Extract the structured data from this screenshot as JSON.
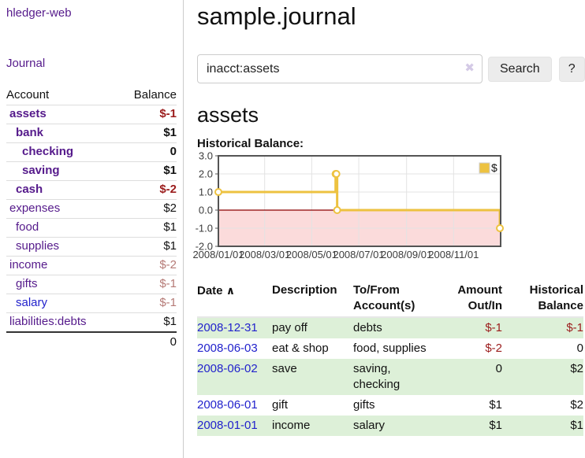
{
  "brand": "hledger-web",
  "nav": {
    "journal_label": "Journal"
  },
  "colors": {
    "link_purple": "#551a8b",
    "link_blue": "#2222cc",
    "negative_strong": "#9b1c1c",
    "negative_soft": "#b57a76",
    "row_stripe_green": "#ddf0d8",
    "chart_line_gold": "#edc240",
    "chart_zero_line": "#8b0000",
    "chart_negative_region": "#fbdbdb"
  },
  "sidebar_table": {
    "headers": {
      "account": "Account",
      "balance": "Balance"
    },
    "rows": [
      {
        "account": "assets",
        "balance": "$-1",
        "level": 1,
        "bold": true,
        "neg": "strong"
      },
      {
        "account": "bank",
        "balance": "$1",
        "level": 2,
        "bold": true,
        "neg": ""
      },
      {
        "account": "checking",
        "balance": "0",
        "level": 3,
        "bold": true,
        "neg": ""
      },
      {
        "account": "saving",
        "balance": "$1",
        "level": 3,
        "bold": true,
        "neg": ""
      },
      {
        "account": "cash",
        "balance": "$-2",
        "level": 2,
        "bold": true,
        "neg": "strong"
      },
      {
        "account": "expenses",
        "balance": "$2",
        "level": 1,
        "bold": false,
        "neg": ""
      },
      {
        "account": "food",
        "balance": "$1",
        "level": 2,
        "bold": false,
        "neg": ""
      },
      {
        "account": "supplies",
        "balance": "$1",
        "level": 2,
        "bold": false,
        "neg": ""
      },
      {
        "account": "income",
        "balance": "$-2",
        "level": 1,
        "bold": false,
        "neg": "soft"
      },
      {
        "account": "gifts",
        "balance": "$-1",
        "level": 2,
        "bold": false,
        "neg": "soft"
      },
      {
        "account": "salary",
        "balance": "$-1",
        "level": 2,
        "bold": false,
        "neg": "soft",
        "link_color": "blue"
      },
      {
        "account": "liabilities:debts",
        "balance": "$1",
        "level": 1,
        "bold": false,
        "neg": ""
      }
    ],
    "total": "0"
  },
  "header": {
    "title": "sample.journal"
  },
  "search": {
    "value": "inacct:assets",
    "clear_icon": "✖",
    "button_label": "Search",
    "help_label": "?"
  },
  "account_page": {
    "heading": "assets",
    "chart_label": "Historical Balance:"
  },
  "chart_data": {
    "type": "line",
    "title": "Historical Balance",
    "step": true,
    "series": [
      {
        "name": "$",
        "color": "#edc240",
        "points": [
          [
            "2008-01-01",
            1
          ],
          [
            "2008-06-01",
            2
          ],
          [
            "2008-06-02",
            2
          ],
          [
            "2008-06-03",
            0
          ],
          [
            "2008-12-31",
            -1
          ]
        ]
      }
    ],
    "xdomain": [
      "2008-01-01",
      "2009-01-01"
    ],
    "xticks": [
      {
        "label": "2008/01/01",
        "date": "2008-01-01"
      },
      {
        "label": "2008/03/01",
        "date": "2008-03-01"
      },
      {
        "label": "2008/05/01",
        "date": "2008-05-01"
      },
      {
        "label": "2008/07/01",
        "date": "2008-07-01"
      },
      {
        "label": "2008/09/01",
        "date": "2008-09-01"
      },
      {
        "label": "2008/11/01",
        "date": "2008-11-01"
      }
    ],
    "yticks": [
      3.0,
      2.0,
      1.0,
      0.0,
      -1.0,
      -2.0
    ],
    "ylim": [
      -2,
      3
    ],
    "grid": true,
    "legend": {
      "position": "top-right",
      "label": "$"
    },
    "negative_region_color": "#fbdbdb",
    "zero_line_color": "#8b0000",
    "border_color": "#545454",
    "grid_color": "#e3e3e3"
  },
  "register_table": {
    "headers": {
      "date": "Date",
      "sort_icon": "∧",
      "description": "Description",
      "accounts": "To/From Account(s)",
      "amount": "Amount Out/In",
      "balance": "Historical Balance"
    },
    "rows": [
      {
        "date": "2008-12-31",
        "description": "pay off",
        "accounts": "debts",
        "amount": "$-1",
        "balance": "$-1"
      },
      {
        "date": "2008-06-03",
        "description": "eat & shop",
        "accounts": "food, supplies",
        "amount": "$-2",
        "balance": "0"
      },
      {
        "date": "2008-06-02",
        "description": "save",
        "accounts": "saving, checking",
        "amount": "0",
        "balance": "$2"
      },
      {
        "date": "2008-06-01",
        "description": "gift",
        "accounts": "gifts",
        "amount": "$1",
        "balance": "$2"
      },
      {
        "date": "2008-01-01",
        "description": "income",
        "accounts": "salary",
        "amount": "$1",
        "balance": "$1"
      }
    ]
  }
}
